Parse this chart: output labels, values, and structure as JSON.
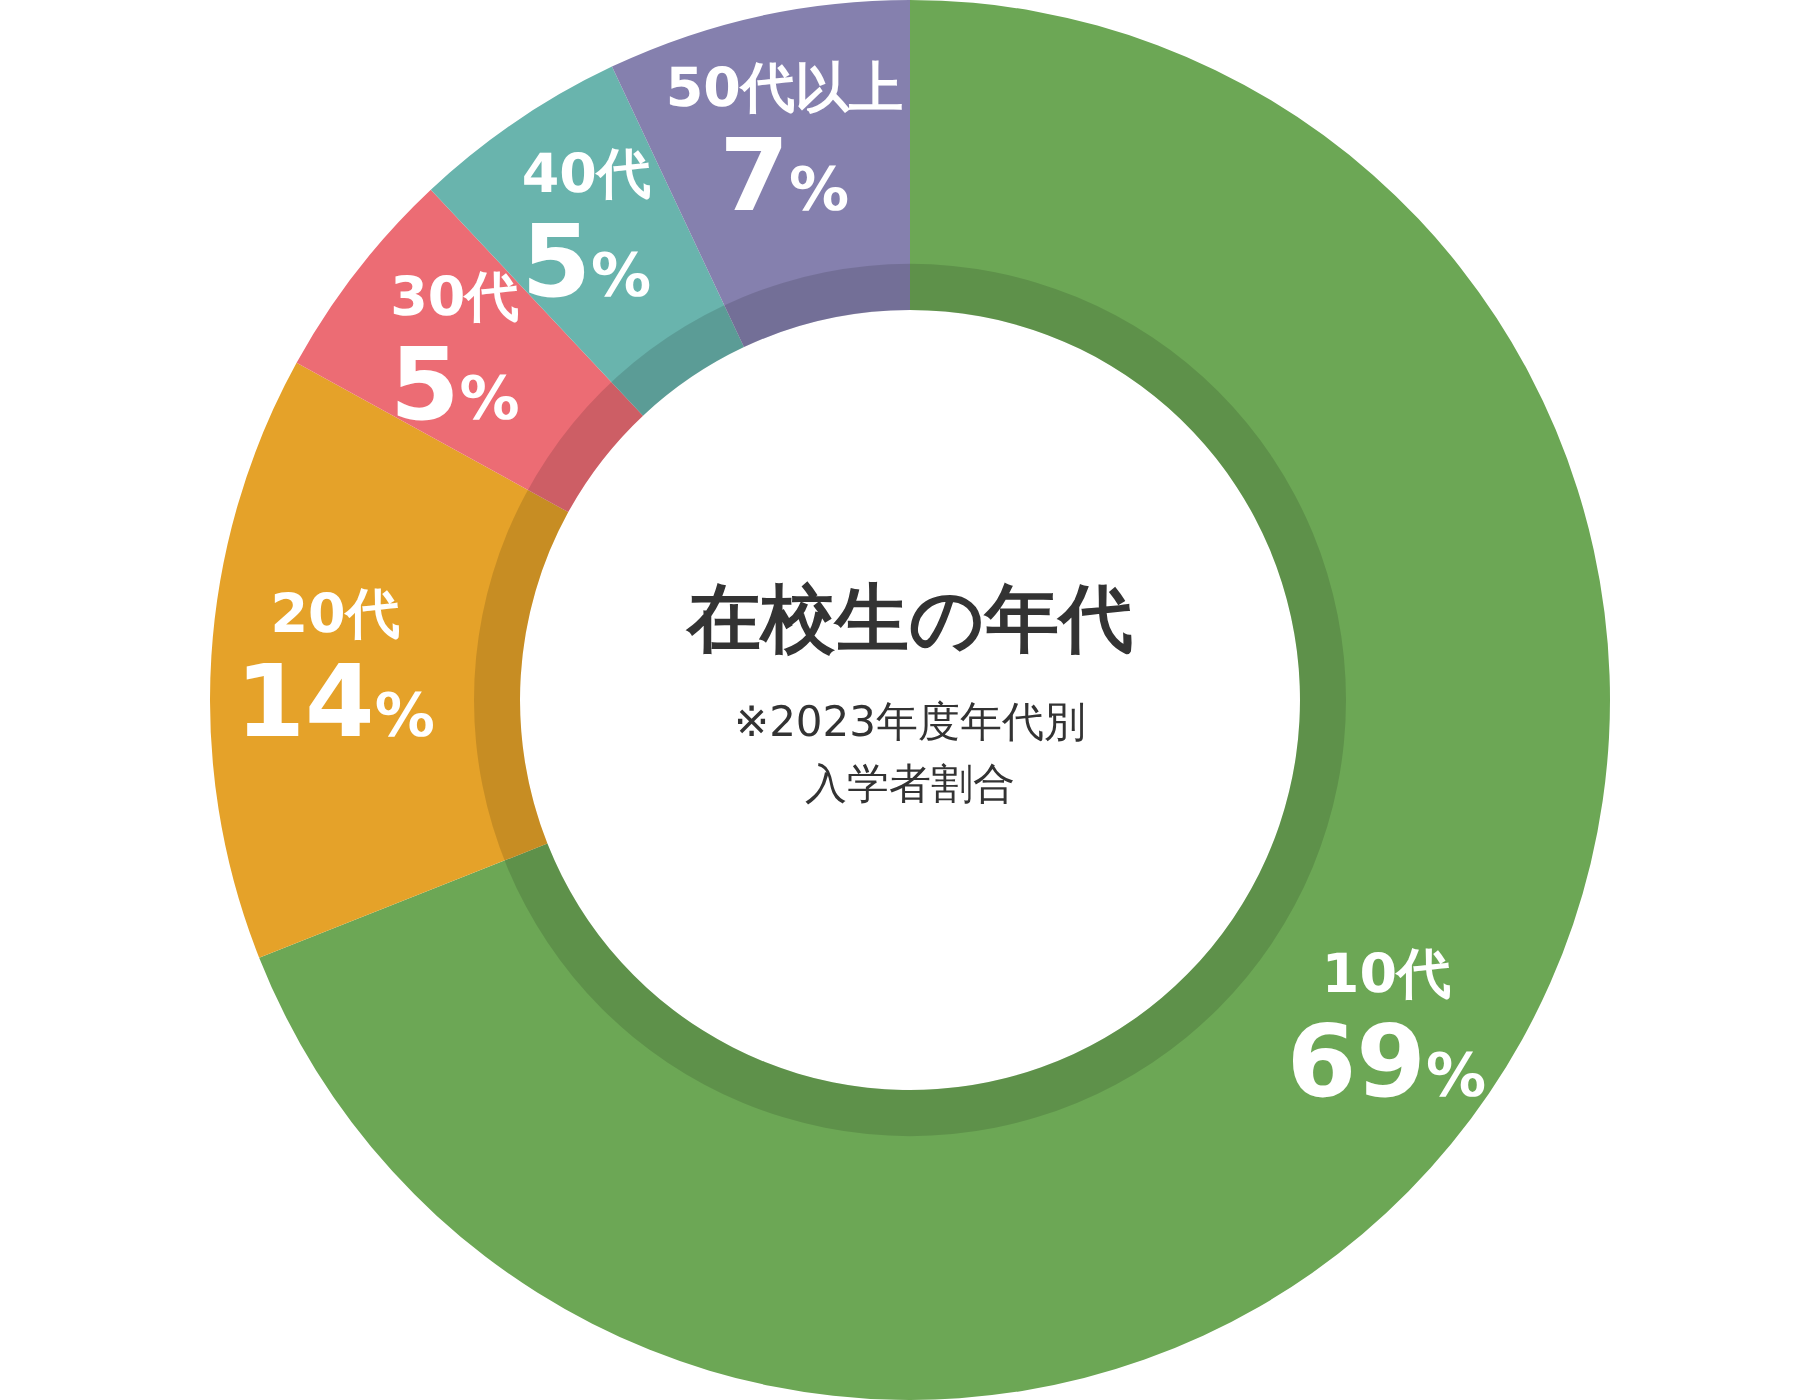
{
  "chart_data": {
    "type": "donut",
    "title": "在校生の年代",
    "subtitle": "※2023年度年代別入学者割合",
    "categories": [
      "10代",
      "20代",
      "30代",
      "40代",
      "50代以上"
    ],
    "values": [
      69,
      14,
      5,
      5,
      7
    ],
    "colors": [
      "#6ca755",
      "#e5a229",
      "#ec6c74",
      "#69b4ad",
      "#8580ae"
    ],
    "value_labels": [
      "69%",
      "14%",
      "5%",
      "5%",
      "7%"
    ]
  }
}
